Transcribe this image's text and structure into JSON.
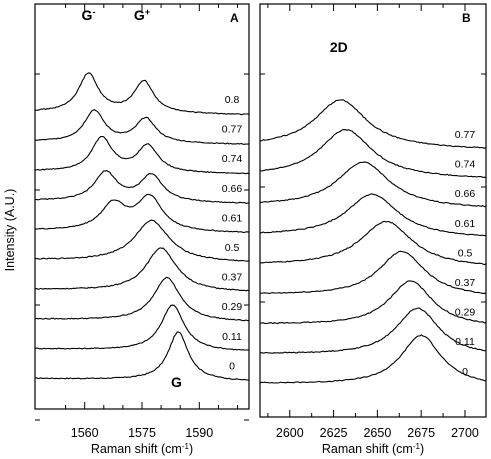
{
  "chart_data": [
    {
      "panel": "A",
      "type": "line",
      "xlabel": "Raman shift (cm",
      "xlabel_sup": "-1",
      "xlabel_close": ")",
      "ylabel": "Intensity (A.U.)",
      "xlim": [
        1547,
        1603
      ],
      "x_ticks": [
        1560,
        1575,
        1590
      ],
      "x_minor_ticks": [
        1555,
        1565,
        1570,
        1580,
        1585,
        1595,
        1600
      ],
      "peak_labels": [
        {
          "base": "G",
          "sup": "-",
          "x": 1561,
          "color": "#e8141e"
        },
        {
          "base": "G",
          "sup": "+",
          "x": 1575,
          "color": "#000000"
        },
        {
          "base": "G",
          "sup": "",
          "x": 1584,
          "color": "#000000"
        }
      ],
      "series": [
        {
          "label": "0",
          "peaks": [
            {
              "center": 1584.5,
              "amp": 1.0,
              "width": 3.2
            }
          ]
        },
        {
          "label": "0.11",
          "peaks": [
            {
              "center": 1583.0,
              "amp": 0.95,
              "width": 3.6
            }
          ]
        },
        {
          "label": "0.29",
          "peaks": [
            {
              "center": 1581.5,
              "amp": 0.9,
              "width": 4.2
            }
          ]
        },
        {
          "label": "0.37",
          "peaks": [
            {
              "center": 1580.0,
              "amp": 0.9,
              "width": 4.8
            }
          ]
        },
        {
          "label": "0.5",
          "peaks": [
            {
              "center": 1577.5,
              "amp": 0.85,
              "width": 5.5
            }
          ]
        },
        {
          "label": "0.61",
          "peaks": [
            {
              "center": 1567.5,
              "amp": 0.55,
              "width": 4.0
            },
            {
              "center": 1577.0,
              "amp": 0.7,
              "width": 4.0
            }
          ]
        },
        {
          "label": "0.66",
          "peaks": [
            {
              "center": 1565.5,
              "amp": 0.6,
              "width": 3.6
            },
            {
              "center": 1577.5,
              "amp": 0.55,
              "width": 3.6
            }
          ]
        },
        {
          "label": "0.74",
          "peaks": [
            {
              "center": 1564.5,
              "amp": 0.7,
              "width": 3.3
            },
            {
              "center": 1576.5,
              "amp": 0.55,
              "width": 3.3
            }
          ]
        },
        {
          "label": "0.77",
          "peaks": [
            {
              "center": 1562.5,
              "amp": 0.65,
              "width": 3.2
            },
            {
              "center": 1576.0,
              "amp": 0.5,
              "width": 3.2
            }
          ]
        },
        {
          "label": "0.8",
          "peaks": [
            {
              "center": 1561.0,
              "amp": 0.8,
              "width": 3.1
            },
            {
              "center": 1575.5,
              "amp": 0.65,
              "width": 3.1
            }
          ]
        }
      ]
    },
    {
      "panel": "B",
      "type": "line",
      "xlabel": "Raman shift (cm",
      "xlabel_sup": "-1",
      "xlabel_close": ")",
      "xlim": [
        2583,
        2712
      ],
      "x_ticks": [
        2600,
        2625,
        2650,
        2675,
        2700
      ],
      "x_minor_ticks": [
        2587.5,
        2612.5,
        2637.5,
        2662.5,
        2687.5
      ],
      "peak_labels": [
        {
          "base": "2D",
          "sup": "",
          "x": 2628,
          "color": "#000000"
        }
      ],
      "series": [
        {
          "label": "0",
          "peaks": [
            {
              "center": 2675.0,
              "amp": 1.0,
              "width": 14
            }
          ]
        },
        {
          "label": "0.11",
          "peaks": [
            {
              "center": 2673.0,
              "amp": 0.95,
              "width": 15
            }
          ]
        },
        {
          "label": "0.29",
          "peaks": [
            {
              "center": 2669.0,
              "amp": 0.9,
              "width": 15
            }
          ]
        },
        {
          "label": "0.37",
          "peaks": [
            {
              "center": 2664.0,
              "amp": 0.9,
              "width": 16
            }
          ]
        },
        {
          "label": "0.5",
          "peaks": [
            {
              "center": 2655.0,
              "amp": 0.9,
              "width": 18
            }
          ]
        },
        {
          "label": "0.61",
          "peaks": [
            {
              "center": 2647.0,
              "amp": 0.85,
              "width": 18
            }
          ]
        },
        {
          "label": "0.66",
          "peaks": [
            {
              "center": 2642.0,
              "amp": 0.9,
              "width": 18
            }
          ]
        },
        {
          "label": "0.74",
          "peaks": [
            {
              "center": 2632.0,
              "amp": 0.95,
              "width": 18
            }
          ]
        },
        {
          "label": "0.77",
          "peaks": [
            {
              "center": 2629.0,
              "amp": 0.95,
              "width": 18
            }
          ]
        }
      ]
    }
  ],
  "panels": {
    "A": {
      "letter": "A"
    },
    "B": {
      "letter": "B"
    }
  }
}
